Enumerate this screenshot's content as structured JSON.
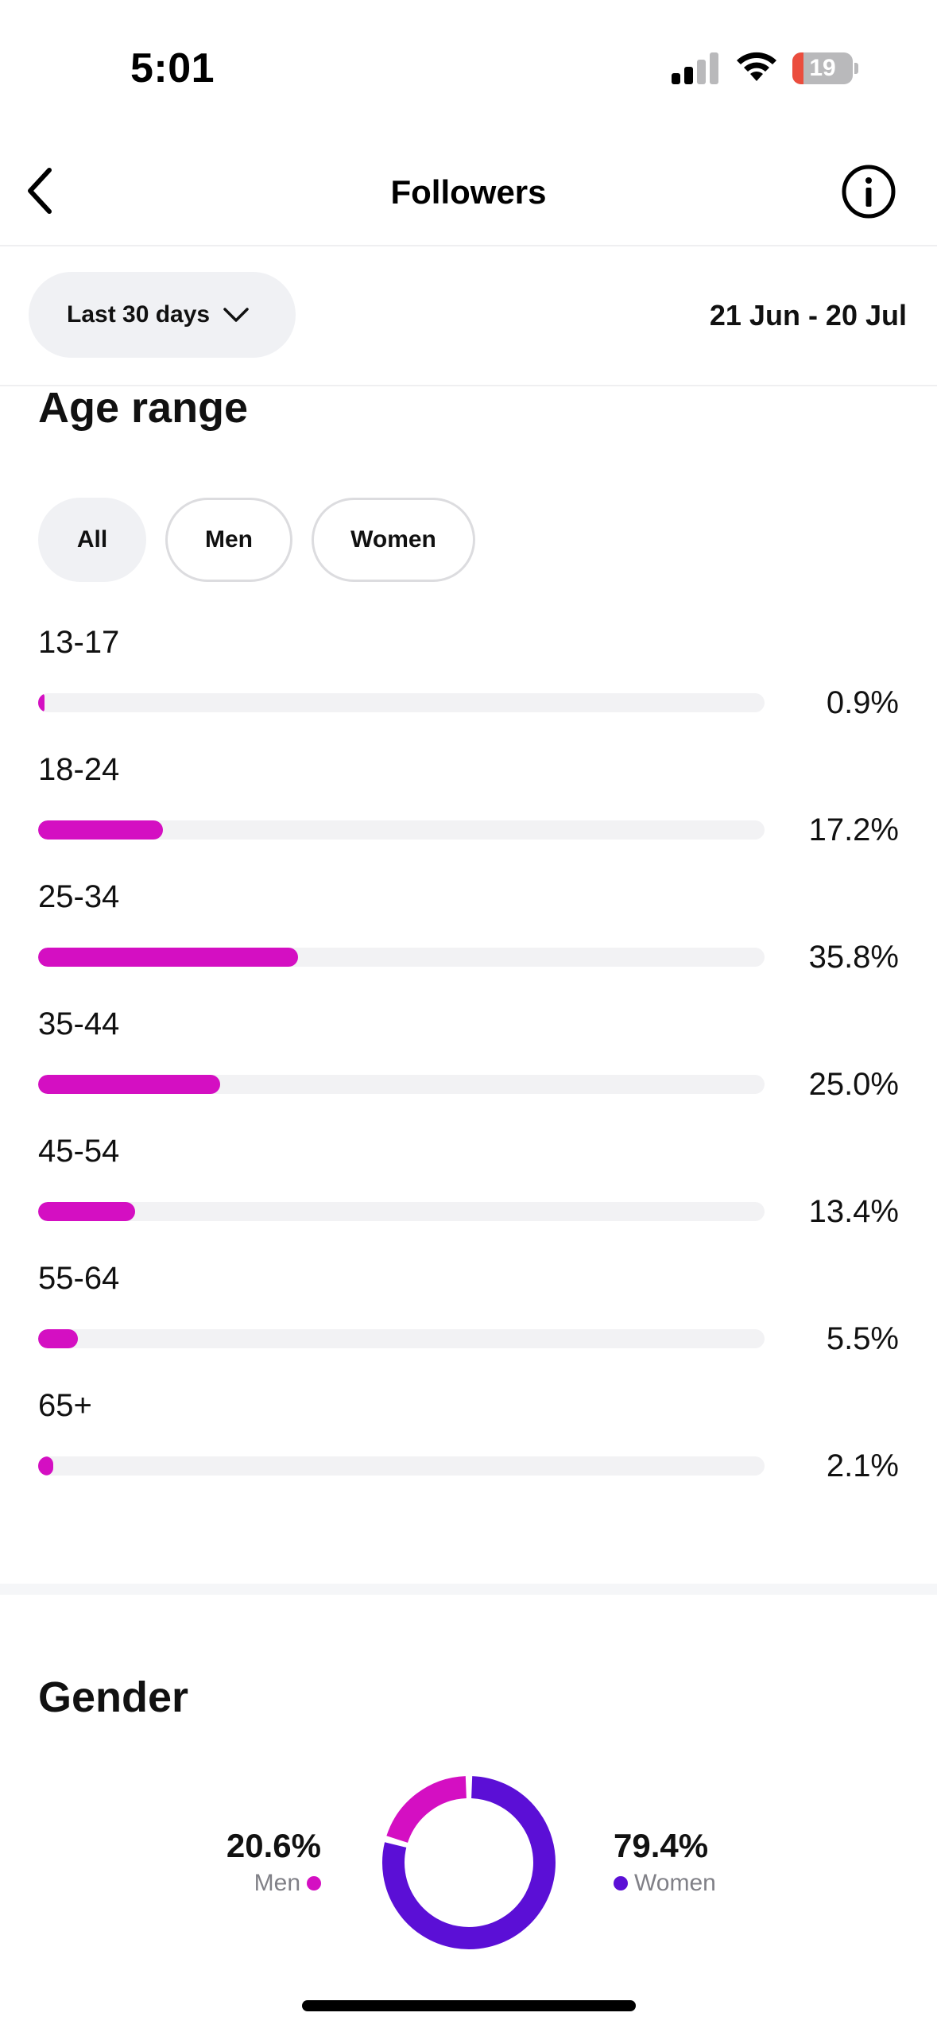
{
  "status_bar": {
    "time": "5:01",
    "battery_level": "19",
    "battery_fraction": 0.19,
    "icons": [
      "cellular-signal-icon",
      "wifi-icon",
      "battery-icon"
    ]
  },
  "header": {
    "title": "Followers",
    "back_icon": "chevron-left-icon",
    "info_icon": "info-circle-icon"
  },
  "filter": {
    "period_label": "Last 30 days",
    "period_icon": "chevron-down-icon",
    "date_range": "21 Jun - 20 Jul"
  },
  "age_range": {
    "title": "Age range",
    "tabs": [
      {
        "label": "All",
        "active": true
      },
      {
        "label": "Men",
        "active": false
      },
      {
        "label": "Women",
        "active": false
      }
    ],
    "rows": [
      {
        "label": "13-17",
        "value": 0.9,
        "display": "0.9%"
      },
      {
        "label": "18-24",
        "value": 17.2,
        "display": "17.2%"
      },
      {
        "label": "25-34",
        "value": 35.8,
        "display": "35.8%"
      },
      {
        "label": "35-44",
        "value": 25.0,
        "display": "25.0%"
      },
      {
        "label": "45-54",
        "value": 13.4,
        "display": "13.4%"
      },
      {
        "label": "55-64",
        "value": 5.5,
        "display": "5.5%"
      },
      {
        "label": "65+",
        "value": 2.1,
        "display": "2.1%"
      }
    ]
  },
  "gender": {
    "title": "Gender",
    "men": {
      "value": 20.6,
      "display": "20.6%",
      "label": "Men",
      "color": "#d40fc2"
    },
    "women": {
      "value": 79.4,
      "display": "79.4%",
      "label": "Women",
      "color": "#5b0fd6"
    }
  },
  "colors": {
    "bar_fill": "#d40fc2",
    "bar_track": "#f2f2f4",
    "pill_bg": "#f0f1f4",
    "battery_low": "#eb4d3d"
  }
}
